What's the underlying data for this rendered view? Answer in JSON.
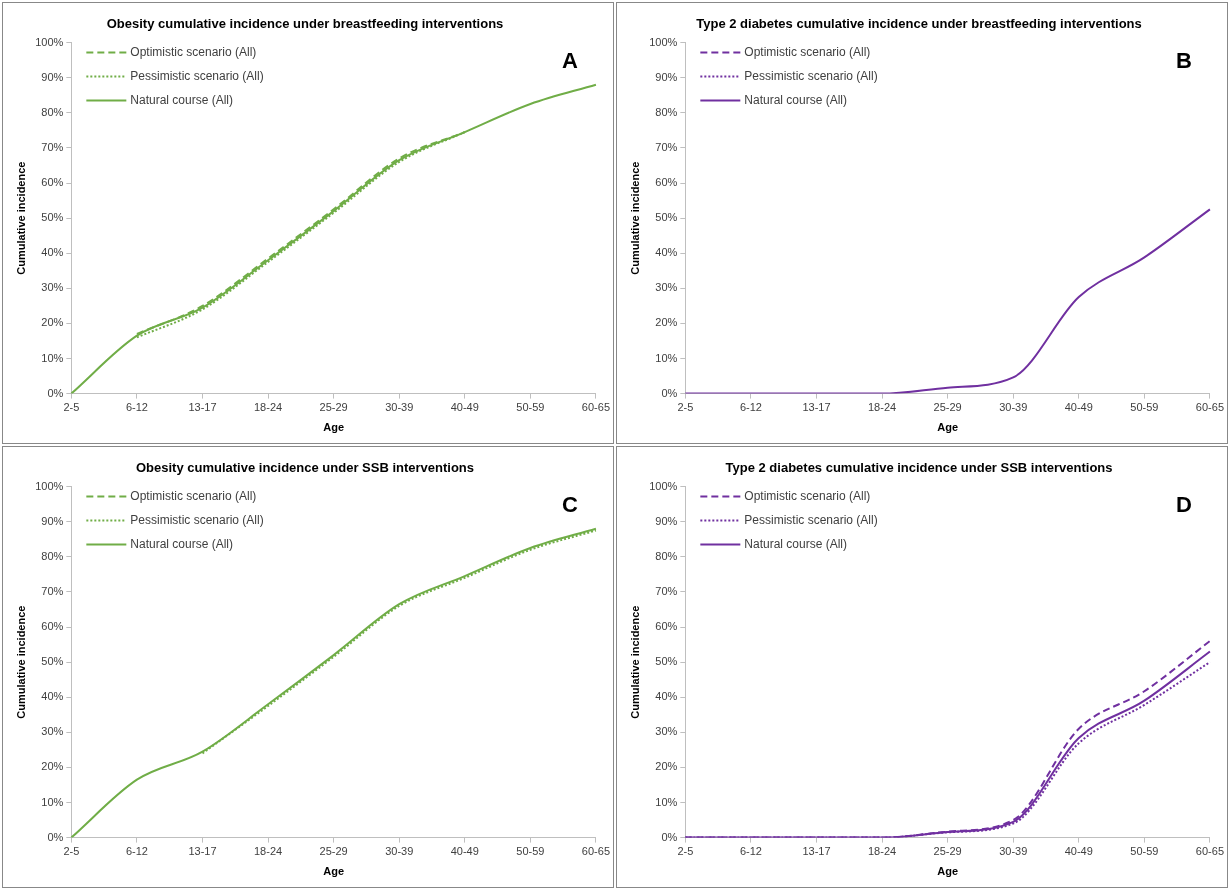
{
  "chart_data": [
    {
      "type": "line",
      "title": "Obesity cumulative incidence under breastfeeding interventions",
      "xlabel": "Age",
      "ylabel": "Cumulative incidence",
      "annotations": [
        "A"
      ],
      "legend": "top left",
      "categories": [
        "2-5",
        "6-12",
        "13-17",
        "18-24",
        "25-29",
        "30-39",
        "40-49",
        "50-59",
        "60-65"
      ],
      "ylim": [
        0,
        100
      ],
      "yticks": [
        {
          "value": 0,
          "label": "0%"
        },
        {
          "value": 10,
          "label": "10%"
        },
        {
          "value": 20,
          "label": "20%"
        },
        {
          "value": 30,
          "label": "30%"
        },
        {
          "value": 40,
          "label": "40%"
        },
        {
          "value": 50,
          "label": "50%"
        },
        {
          "value": 60,
          "label": "60%"
        },
        {
          "value": 70,
          "label": "70%"
        },
        {
          "value": 80,
          "label": "80%"
        },
        {
          "value": 90,
          "label": "90%"
        },
        {
          "value": 100,
          "label": "100%"
        }
      ],
      "series": [
        {
          "name": "Optimistic scenario (All)",
          "color": "#70ad47",
          "line_style": "dashed",
          "values": [
            null,
            17,
            25,
            38.5,
            52.5,
            67,
            74.5,
            null,
            null
          ]
        },
        {
          "name": "Pessimistic scenario (All)",
          "color": "#70ad47",
          "line_style": "dotted",
          "values": [
            null,
            16,
            24,
            37.5,
            51.5,
            66,
            74.5,
            null,
            null
          ]
        },
        {
          "name": "Natural course (All)",
          "color": "#70ad47",
          "line_style": "solid",
          "values": [
            0,
            16.5,
            24.5,
            38,
            52,
            66.5,
            74.5,
            82.5,
            88
          ]
        }
      ]
    },
    {
      "type": "line",
      "title": "Type 2 diabetes cumulative incidence under breastfeeding interventions",
      "xlabel": "Age",
      "ylabel": "Cumulative incidence",
      "annotations": [
        "B"
      ],
      "legend": "top left",
      "categories": [
        "2-5",
        "6-12",
        "13-17",
        "18-24",
        "25-29",
        "30-39",
        "40-49",
        "50-59",
        "60-65"
      ],
      "ylim": [
        0,
        100
      ],
      "yticks": [
        {
          "value": 0,
          "label": "0%"
        },
        {
          "value": 10,
          "label": "10%"
        },
        {
          "value": 20,
          "label": "20%"
        },
        {
          "value": 30,
          "label": "30%"
        },
        {
          "value": 40,
          "label": "40%"
        },
        {
          "value": 50,
          "label": "50%"
        },
        {
          "value": 60,
          "label": "60%"
        },
        {
          "value": 70,
          "label": "70%"
        },
        {
          "value": 80,
          "label": "80%"
        },
        {
          "value": 90,
          "label": "90%"
        },
        {
          "value": 100,
          "label": "100%"
        }
      ],
      "series": [
        {
          "name": "Optimistic scenario (All)",
          "color": "#7030a0",
          "line_style": "dashed",
          "values": [
            null,
            null,
            null,
            null,
            null,
            null,
            null,
            null,
            null
          ]
        },
        {
          "name": "Pessimistic scenario (All)",
          "color": "#7030a0",
          "line_style": "dotted",
          "values": [
            null,
            null,
            null,
            null,
            null,
            null,
            null,
            null,
            null
          ]
        },
        {
          "name": "Natural course (All)",
          "color": "#7030a0",
          "line_style": "solid",
          "values": [
            0,
            0,
            0,
            0,
            1.7,
            4.6,
            27.5,
            38.8,
            52.5
          ]
        }
      ]
    },
    {
      "type": "line",
      "title": "Obesity cumulative incidence under SSB interventions",
      "xlabel": "Age",
      "ylabel": "Cumulative incidence",
      "annotations": [
        "C"
      ],
      "legend": "top left",
      "categories": [
        "2-5",
        "6-12",
        "13-17",
        "18-24",
        "25-29",
        "30-39",
        "40-49",
        "50-59",
        "60-65"
      ],
      "ylim": [
        0,
        100
      ],
      "yticks": [
        {
          "value": 0,
          "label": "0%"
        },
        {
          "value": 10,
          "label": "10%"
        },
        {
          "value": 20,
          "label": "20%"
        },
        {
          "value": 30,
          "label": "30%"
        },
        {
          "value": 40,
          "label": "40%"
        },
        {
          "value": 50,
          "label": "50%"
        },
        {
          "value": 60,
          "label": "60%"
        },
        {
          "value": 70,
          "label": "70%"
        },
        {
          "value": 80,
          "label": "80%"
        },
        {
          "value": 90,
          "label": "90%"
        },
        {
          "value": 100,
          "label": "100%"
        }
      ],
      "series": [
        {
          "name": "Optimistic scenario (All)",
          "color": "#70ad47",
          "line_style": "dashed",
          "values": [
            null,
            null,
            null,
            null,
            null,
            null,
            null,
            null,
            null
          ]
        },
        {
          "name": "Pessimistic scenario (All)",
          "color": "#70ad47",
          "line_style": "dotted",
          "values": [
            null,
            null,
            24,
            37.5,
            51.5,
            66,
            74,
            82,
            87.5
          ]
        },
        {
          "name": "Natural course (All)",
          "color": "#70ad47",
          "line_style": "solid",
          "values": [
            0,
            16.5,
            24.5,
            38,
            52,
            66.5,
            74.5,
            82.5,
            88
          ]
        }
      ]
    },
    {
      "type": "line",
      "title": "Type 2 diabetes cumulative incidence under SSB interventions",
      "xlabel": "Age",
      "ylabel": "Cumulative incidence",
      "annotations": [
        "D"
      ],
      "legend": "top left",
      "categories": [
        "2-5",
        "6-12",
        "13-17",
        "18-24",
        "25-29",
        "30-39",
        "40-49",
        "50-59",
        "60-65"
      ],
      "ylim": [
        0,
        100
      ],
      "yticks": [
        {
          "value": 0,
          "label": "0%"
        },
        {
          "value": 10,
          "label": "10%"
        },
        {
          "value": 20,
          "label": "20%"
        },
        {
          "value": 30,
          "label": "30%"
        },
        {
          "value": 40,
          "label": "40%"
        },
        {
          "value": 50,
          "label": "50%"
        },
        {
          "value": 60,
          "label": "60%"
        },
        {
          "value": 70,
          "label": "70%"
        },
        {
          "value": 80,
          "label": "80%"
        },
        {
          "value": 90,
          "label": "90%"
        },
        {
          "value": 100,
          "label": "100%"
        }
      ],
      "series": [
        {
          "name": "Optimistic scenario (All)",
          "color": "#7030a0",
          "line_style": "dashed",
          "values": [
            0,
            0,
            0,
            0,
            1.7,
            5,
            31,
            41.7,
            56
          ]
        },
        {
          "name": "Pessimistic scenario (All)",
          "color": "#7030a0",
          "line_style": "dotted",
          "values": [
            0,
            0,
            0,
            0,
            1.5,
            4,
            26.9,
            37.8,
            50
          ]
        },
        {
          "name": "Natural course (All)",
          "color": "#7030a0",
          "line_style": "solid",
          "values": [
            0,
            0,
            0,
            0,
            1.6,
            4.5,
            28.4,
            39,
            53
          ]
        }
      ]
    }
  ]
}
